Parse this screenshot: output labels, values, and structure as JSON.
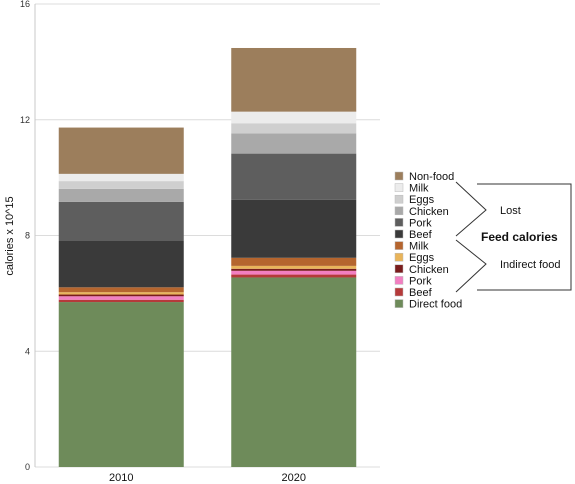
{
  "chart_data": {
    "type": "bar",
    "stacked": true,
    "title": "",
    "xlabel": "",
    "ylabel": "calories x 10^15",
    "ylim": [
      0,
      16
    ],
    "yticks": [
      0,
      4,
      8,
      12,
      16
    ],
    "grid": true,
    "legend_position": "right",
    "categories": [
      "2010",
      "2020"
    ],
    "series": [
      {
        "name": "Direct food",
        "color": "#6e8b5a",
        "values": [
          5.7,
          6.55
        ]
      },
      {
        "name": "Beef",
        "color": "#b53a3a",
        "values": [
          0.08,
          0.1
        ]
      },
      {
        "name": "Pork",
        "color": "#f27fc1",
        "values": [
          0.12,
          0.13
        ]
      },
      {
        "name": "Chicken",
        "color": "#7a1c1c",
        "values": [
          0.06,
          0.07
        ]
      },
      {
        "name": "Eggs",
        "color": "#e9b45a",
        "values": [
          0.08,
          0.1
        ]
      },
      {
        "name": "Milk",
        "color": "#b5652e",
        "values": [
          0.17,
          0.28
        ]
      },
      {
        "name": "Beef",
        "color": "#3a3a3a",
        "values": [
          1.6,
          2.0
        ]
      },
      {
        "name": "Pork",
        "color": "#5e5e5e",
        "values": [
          1.35,
          1.6
        ]
      },
      {
        "name": "Chicken",
        "color": "#a9a9a9",
        "values": [
          0.45,
          0.7
        ]
      },
      {
        "name": "Eggs",
        "color": "#cfcfcf",
        "values": [
          0.27,
          0.35
        ]
      },
      {
        "name": "Milk",
        "color": "#ececec",
        "values": [
          0.25,
          0.4
        ]
      },
      {
        "name": "Non-food",
        "color": "#9c7e5c",
        "values": [
          1.6,
          2.2
        ]
      }
    ],
    "annotations": {
      "lost": "Lost",
      "indirect": "Indirect food",
      "feed": "Feed calories"
    }
  }
}
